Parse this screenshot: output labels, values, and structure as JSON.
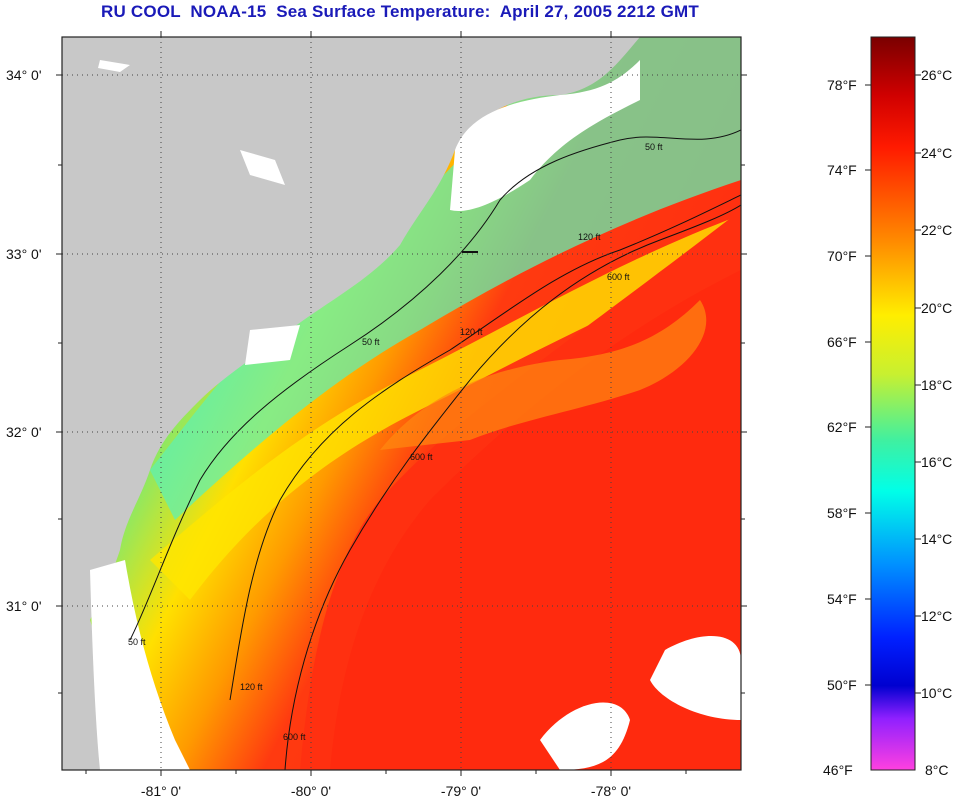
{
  "title": "RU COOL  NOAA-15  Sea Surface Temperature:  April 27, 2005 2212 GMT",
  "map": {
    "lat_labels": [
      "34° 0'",
      "33° 0'",
      "32° 0'",
      "31° 0'"
    ],
    "lon_labels": [
      "-81° 0'",
      "-80° 0'",
      "-79° 0'",
      "-78° 0'"
    ],
    "contour_labels": [
      "50 ft",
      "120 ft",
      "600 ft"
    ]
  },
  "colorbar": {
    "fahrenheit_labels": [
      "78°F",
      "74°F",
      "70°F",
      "66°F",
      "62°F",
      "58°F",
      "54°F",
      "50°F",
      "46°F"
    ],
    "celsius_labels": [
      "26°C",
      "24°C",
      "22°C",
      "20°C",
      "18°C",
      "16°C",
      "14°C",
      "12°C",
      "10°C",
      "8°C"
    ],
    "colors": {
      "dark_red": "#7a0000",
      "red": "#ff1a00",
      "orange": "#ff8c00",
      "yellow": "#ffee00",
      "green": "#a0e84a",
      "cyan": "#00ffe8",
      "blue": "#0060ff",
      "navy": "#0000e0",
      "purple": "#9020ff",
      "pink": "#ff40e0"
    }
  },
  "land_color": "#c8c8c8"
}
